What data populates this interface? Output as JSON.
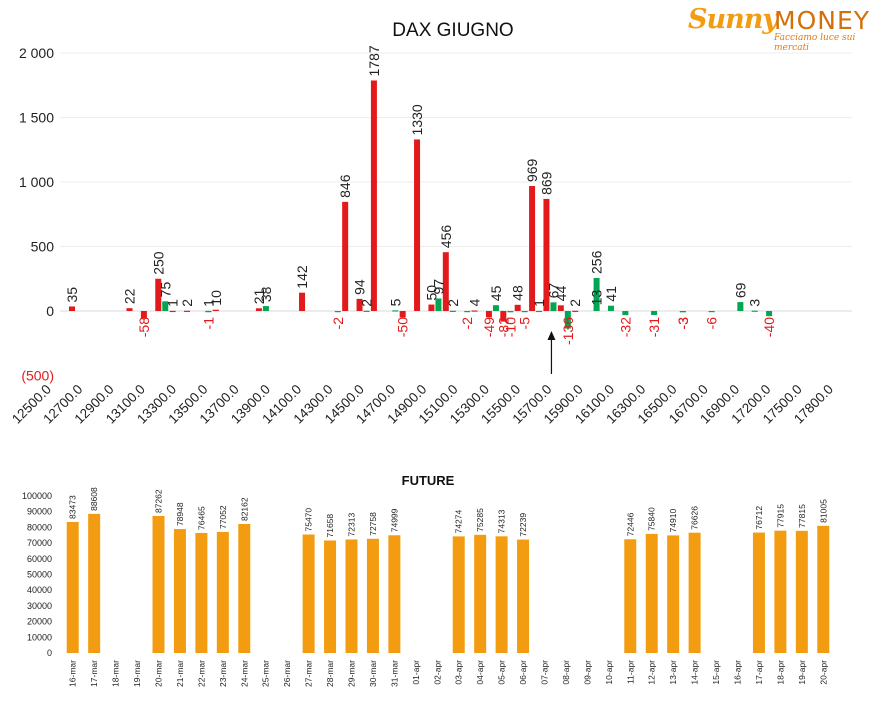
{
  "logo": {
    "brand_left": "Sunny",
    "brand_right": "MONEY",
    "tagline": "Facciamo luce sui mercati"
  },
  "colors": {
    "positive": "#e31a1c",
    "negative": "#00a651",
    "future_bar": "#f39c12",
    "neg_label": "#e31a1c",
    "text": "#222222",
    "grid": "#eeeeee"
  },
  "chart_data": [
    {
      "type": "bar",
      "title": "DAX GIUGNO",
      "ylim": [
        -500,
        2000
      ],
      "yticks": [
        2000,
        1500,
        1000,
        500,
        0,
        -500
      ],
      "ytick_labels": [
        "2 000",
        "1 500",
        "1 000",
        "500",
        "0",
        "(500)"
      ],
      "xtick_labels": [
        "12500.0",
        "12700.0",
        "12900.0",
        "13100.0",
        "13300.0",
        "13500.0",
        "13700.0",
        "13900.0",
        "14100.0",
        "14300.0",
        "14500.0",
        "14700.0",
        "14900.0",
        "15100.0",
        "15300.0",
        "15500.0",
        "15700.0",
        "15900.0",
        "16100.0",
        "16300.0",
        "16500.0",
        "16700.0",
        "16900.0",
        "17200.0",
        "17500.0",
        "17800.0"
      ],
      "grid": true,
      "current_price_marker": "arrow at 15800",
      "series": [
        {
          "color": "#e31a1c",
          "points": [
            {
              "strike": 12500,
              "value": 35
            },
            {
              "strike": 12900,
              "value": 22
            },
            {
              "strike": 13000,
              "value": -58
            },
            {
              "strike": 13100,
              "value": 250
            },
            {
              "strike": 13200,
              "value": 1
            },
            {
              "strike": 13300,
              "value": 2
            },
            {
              "strike": 13500,
              "value": 10
            },
            {
              "strike": 13800,
              "value": 21
            },
            {
              "strike": 14100,
              "value": 142
            },
            {
              "strike": 14400,
              "value": 846
            },
            {
              "strike": 14500,
              "value": 94
            },
            {
              "strike": 14600,
              "value": 1787
            },
            {
              "strike": 14800,
              "value": -50
            },
            {
              "strike": 14900,
              "value": 1330
            },
            {
              "strike": 15000,
              "value": 50
            },
            {
              "strike": 15100,
              "value": 456
            },
            {
              "strike": 15300,
              "value": 4
            },
            {
              "strike": 15400,
              "value": -49
            },
            {
              "strike": 15500,
              "value": -82
            },
            {
              "strike": 15600,
              "value": 48
            },
            {
              "strike": 15700,
              "value": 969
            },
            {
              "strike": 15800,
              "value": 869
            },
            {
              "strike": 15900,
              "value": 44
            },
            {
              "strike": 16000,
              "value": 2
            }
          ]
        },
        {
          "color": "#00a651",
          "points": [
            {
              "strike": 13100,
              "value": 75
            },
            {
              "strike": 13400,
              "value": -1
            },
            {
              "strike": 13400,
              "value": 1
            },
            {
              "strike": 13800,
              "value": 38
            },
            {
              "strike": 14300,
              "value": -2
            },
            {
              "strike": 14500,
              "value": 2
            },
            {
              "strike": 14700,
              "value": 5
            },
            {
              "strike": 15000,
              "value": 97
            },
            {
              "strike": 15100,
              "value": 2
            },
            {
              "strike": 15200,
              "value": -2
            },
            {
              "strike": 15400,
              "value": 45
            },
            {
              "strike": 15500,
              "value": -10
            },
            {
              "strike": 15600,
              "value": -5
            },
            {
              "strike": 15700,
              "value": 1
            },
            {
              "strike": 15800,
              "value": 67
            },
            {
              "strike": 15900,
              "value": -136
            },
            {
              "strike": 16100,
              "value": 256
            },
            {
              "strike": 16100,
              "value": 13
            },
            {
              "strike": 16200,
              "value": 41
            },
            {
              "strike": 16300,
              "value": -32
            },
            {
              "strike": 16500,
              "value": -31
            },
            {
              "strike": 16700,
              "value": -3
            },
            {
              "strike": 16700,
              "value": -3
            },
            {
              "strike": 16900,
              "value": -6
            },
            {
              "strike": 17100,
              "value": 69
            },
            {
              "strike": 17200,
              "value": 3
            },
            {
              "strike": 17300,
              "value": -40
            }
          ]
        }
      ]
    },
    {
      "type": "bar",
      "title": "FUTURE",
      "ylim": [
        0,
        100000
      ],
      "yticks": [
        0,
        10000,
        20000,
        30000,
        40000,
        50000,
        60000,
        70000,
        80000,
        90000,
        100000
      ],
      "categories": [
        "16-mar",
        "17-mar",
        "18-mar",
        "19-mar",
        "20-mar",
        "21-mar",
        "22-mar",
        "23-mar",
        "24-mar",
        "25-mar",
        "26-mar",
        "27-mar",
        "28-mar",
        "29-mar",
        "30-mar",
        "31-mar",
        "01-apr",
        "02-apr",
        "03-apr",
        "04-apr",
        "05-apr",
        "06-apr",
        "07-apr",
        "08-apr",
        "09-apr",
        "10-apr",
        "11-apr",
        "12-apr",
        "13-apr",
        "14-apr",
        "15-apr",
        "16-apr",
        "17-apr",
        "18-apr",
        "19-apr",
        "20-apr"
      ],
      "values": [
        83473,
        88608,
        null,
        null,
        87262,
        78948,
        76465,
        77052,
        82162,
        null,
        null,
        75470,
        71658,
        72313,
        72758,
        74999,
        null,
        null,
        74274,
        75285,
        74313,
        72239,
        null,
        null,
        null,
        null,
        72446,
        75840,
        74910,
        76626,
        null,
        null,
        76712,
        77915,
        77815,
        81005
      ],
      "grid": false
    }
  ]
}
